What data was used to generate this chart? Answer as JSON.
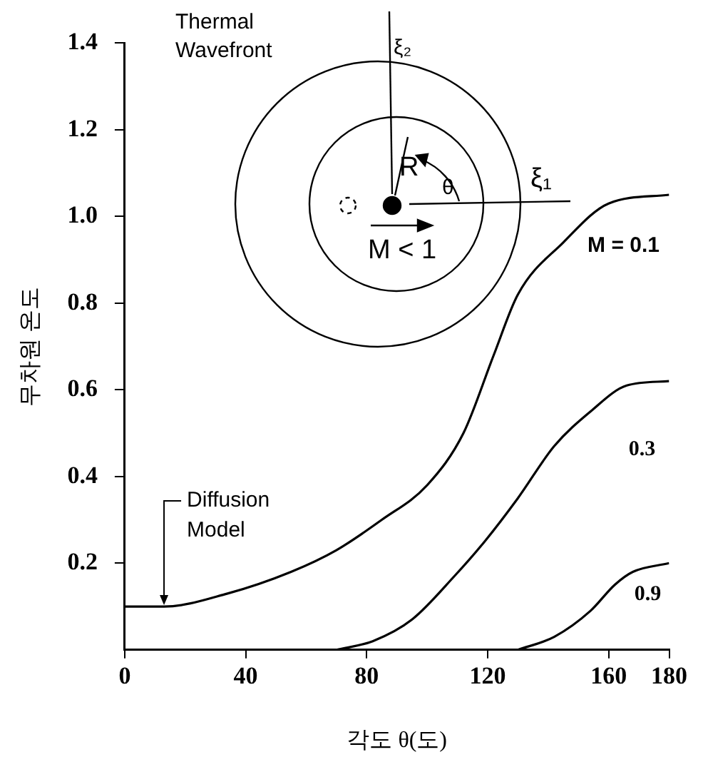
{
  "chart_data": {
    "type": "line",
    "xlabel": "각도 θ(도)",
    "ylabel": "무차원 온도",
    "xlim": [
      0,
      180
    ],
    "xticks": [
      0,
      40,
      80,
      120,
      160,
      180
    ],
    "ylim": [
      0,
      1.4
    ],
    "yticks": [
      0.2,
      0.4,
      0.6,
      0.8,
      {
        "value": 1,
        "label": "1.0"
      },
      1.2,
      1.4
    ],
    "grid": false,
    "legend": false,
    "marker": "none",
    "line_style": "solid",
    "series": [
      {
        "name": "M = 0.1",
        "color": "#000000",
        "x": [
          0,
          13,
          34,
          55,
          70,
          85,
          100,
          112,
          122,
          130,
          145,
          160,
          180
        ],
        "values": [
          0.1,
          0.1,
          0.13,
          0.18,
          0.23,
          0.3,
          0.38,
          0.5,
          0.68,
          0.82,
          0.94,
          1.03,
          1.05
        ]
      },
      {
        "name": "0.3",
        "color": "#000000",
        "x": [
          70,
          82,
          95,
          109,
          119,
          130,
          142,
          154,
          166,
          180
        ],
        "values": [
          0,
          0.02,
          0.07,
          0.17,
          0.25,
          0.35,
          0.47,
          0.55,
          0.61,
          0.62
        ]
      },
      {
        "name": "0.9",
        "color": "#000000",
        "x": [
          130,
          142,
          154,
          162,
          168,
          180
        ],
        "values": [
          0,
          0.03,
          0.09,
          0.15,
          0.18,
          0.2
        ]
      }
    ],
    "annotations": [
      {
        "text": "Diffusion Model",
        "x": 13,
        "y": 0.1
      },
      "Thermal Wavefront",
      "ξ₂",
      "ξ₁",
      "R",
      "θ",
      "M < 1"
    ]
  }
}
